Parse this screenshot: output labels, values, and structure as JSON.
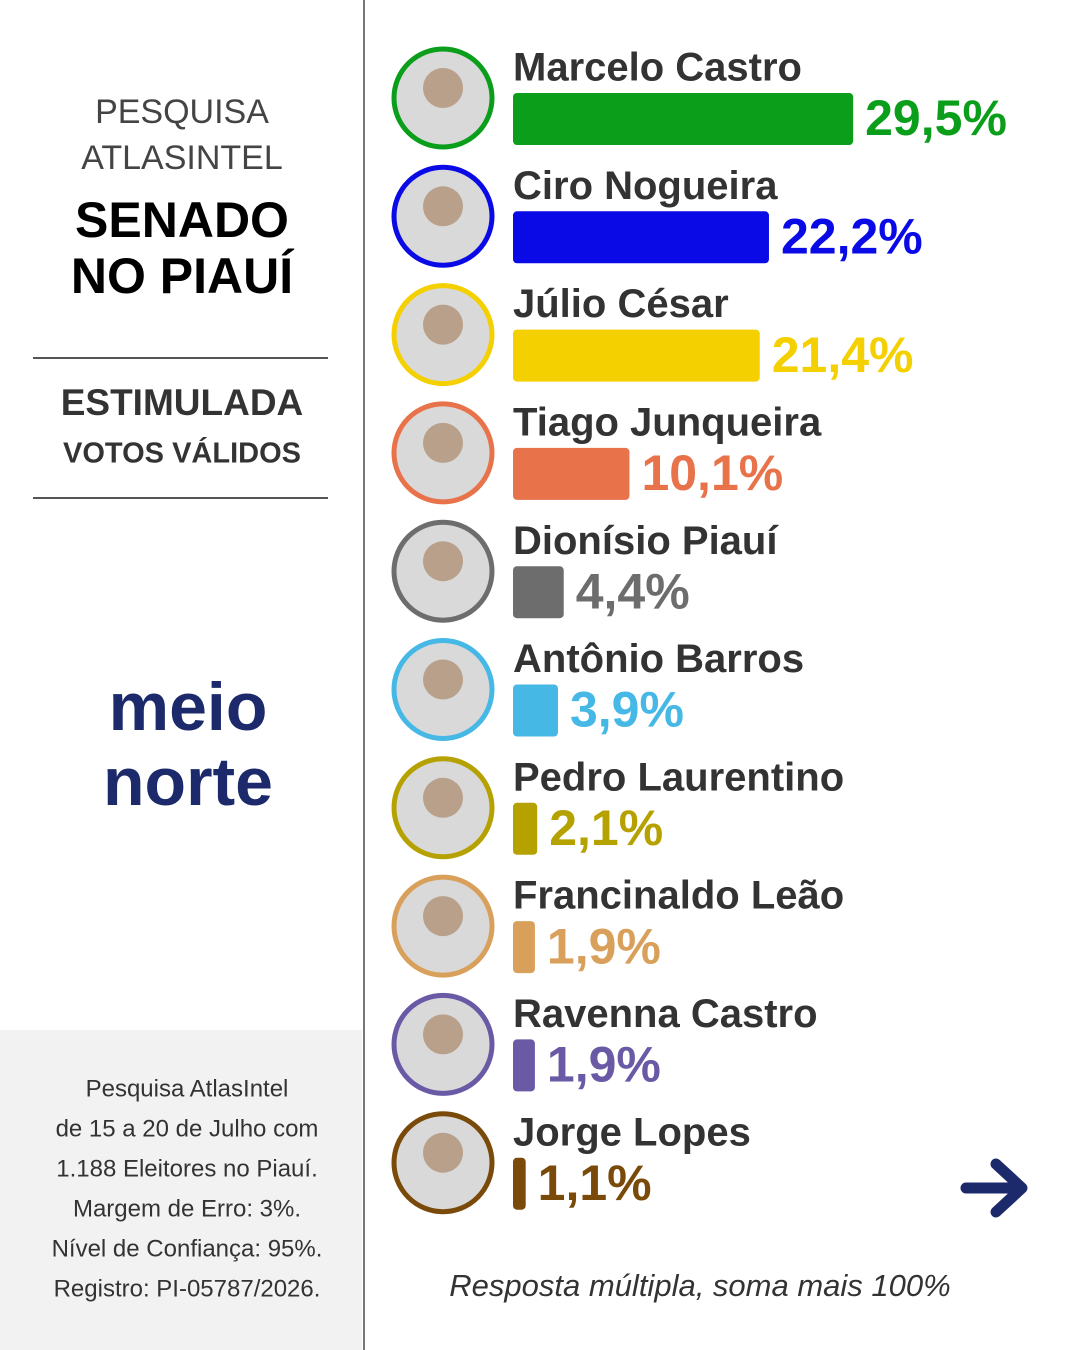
{
  "header": {
    "kicker": [
      "PESQUISA",
      "ATLASINTEL"
    ],
    "title": [
      "SENADO",
      "NO PIAUÍ"
    ],
    "subtitle": "ESTIMULADA",
    "subtitle_detail": "VOTOS VÁLIDOS"
  },
  "logo": [
    "meio",
    "norte"
  ],
  "source_note": [
    "Pesquisa AtlasIntel",
    "de 15 a 20 de Julho com",
    "1.188 Eleitores no Piauí.",
    "Margem de Erro: 3%.",
    "Nível de Confiança: 95%.",
    "Registro: PI-05787/2026."
  ],
  "footnote": "Resposta múltipla, soma mais 100%",
  "chart_data": {
    "type": "bar",
    "orientation": "horizontal",
    "categories": [
      "Marcelo Castro",
      "Ciro Nogueira",
      "Júlio César",
      "Tiago Junqueira",
      "Dionísio Piauí",
      "Antônio Barros",
      "Pedro Laurentino",
      "Francinaldo Leão",
      "Ravenna Castro",
      "Jorge Lopes"
    ],
    "values": [
      29.5,
      22.2,
      21.4,
      10.1,
      4.4,
      3.9,
      2.1,
      1.9,
      1.9,
      1.1
    ],
    "value_labels": [
      "29,5%",
      "22,2%",
      "21,4%",
      "10,1%",
      "4,4%",
      "3,9%",
      "2,1%",
      "1,9%",
      "1,9%",
      "1,1%"
    ],
    "colors": [
      "#0a9e1a",
      "#0a0ae6",
      "#f5d000",
      "#e8734a",
      "#6d6d6d",
      "#45b8e6",
      "#b5a200",
      "#d9a05b",
      "#6a5aa6",
      "#7a4a0a"
    ]
  }
}
